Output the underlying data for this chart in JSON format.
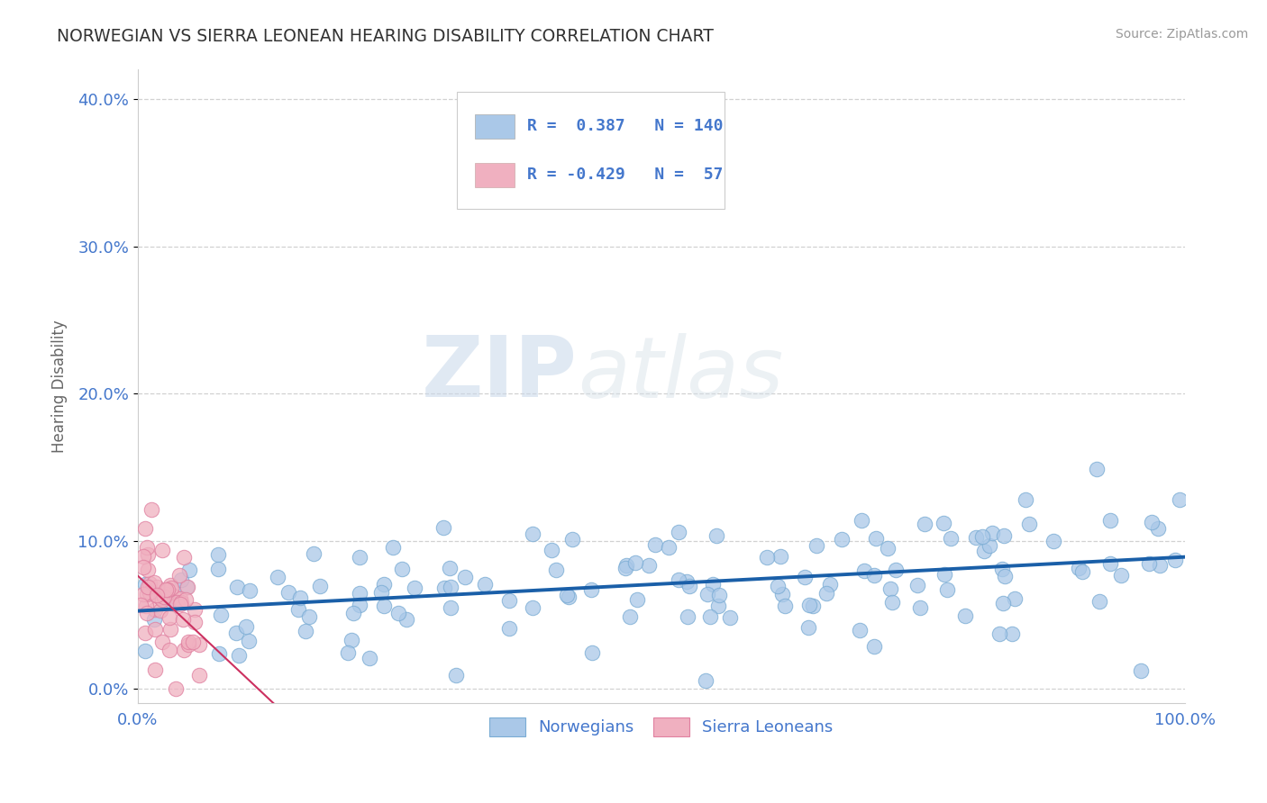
{
  "title": "NORWEGIAN VS SIERRA LEONEAN HEARING DISABILITY CORRELATION CHART",
  "source": "Source: ZipAtlas.com",
  "ylabel": "Hearing Disability",
  "xlim": [
    0.0,
    1.0
  ],
  "ylim": [
    -0.01,
    0.42
  ],
  "yticks": [
    0.0,
    0.1,
    0.2,
    0.3,
    0.4
  ],
  "ytick_labels": [
    "0.0%",
    "10.0%",
    "20.0%",
    "30.0%",
    "40.0%"
  ],
  "xticks": [
    0.0,
    1.0
  ],
  "xtick_labels": [
    "0.0%",
    "100.0%"
  ],
  "norwegian_R": 0.387,
  "norwegian_N": 140,
  "sierraleonean_R": -0.429,
  "sierraleonean_N": 57,
  "norwegian_color": "#aac8e8",
  "norwegian_edge_color": "#7aacd4",
  "norwegian_line_color": "#1a5fa8",
  "sierraleonean_color": "#f0b0c0",
  "sierraleonean_edge_color": "#e080a0",
  "sierraleonean_line_color": "#cc3060",
  "watermark_zip": "ZIP",
  "watermark_atlas": "atlas",
  "background_color": "#ffffff",
  "grid_color": "#cccccc",
  "title_color": "#333333",
  "tick_color": "#4477cc",
  "legend_text_color": "#4477cc",
  "ylabel_color": "#666666",
  "source_color": "#999999"
}
